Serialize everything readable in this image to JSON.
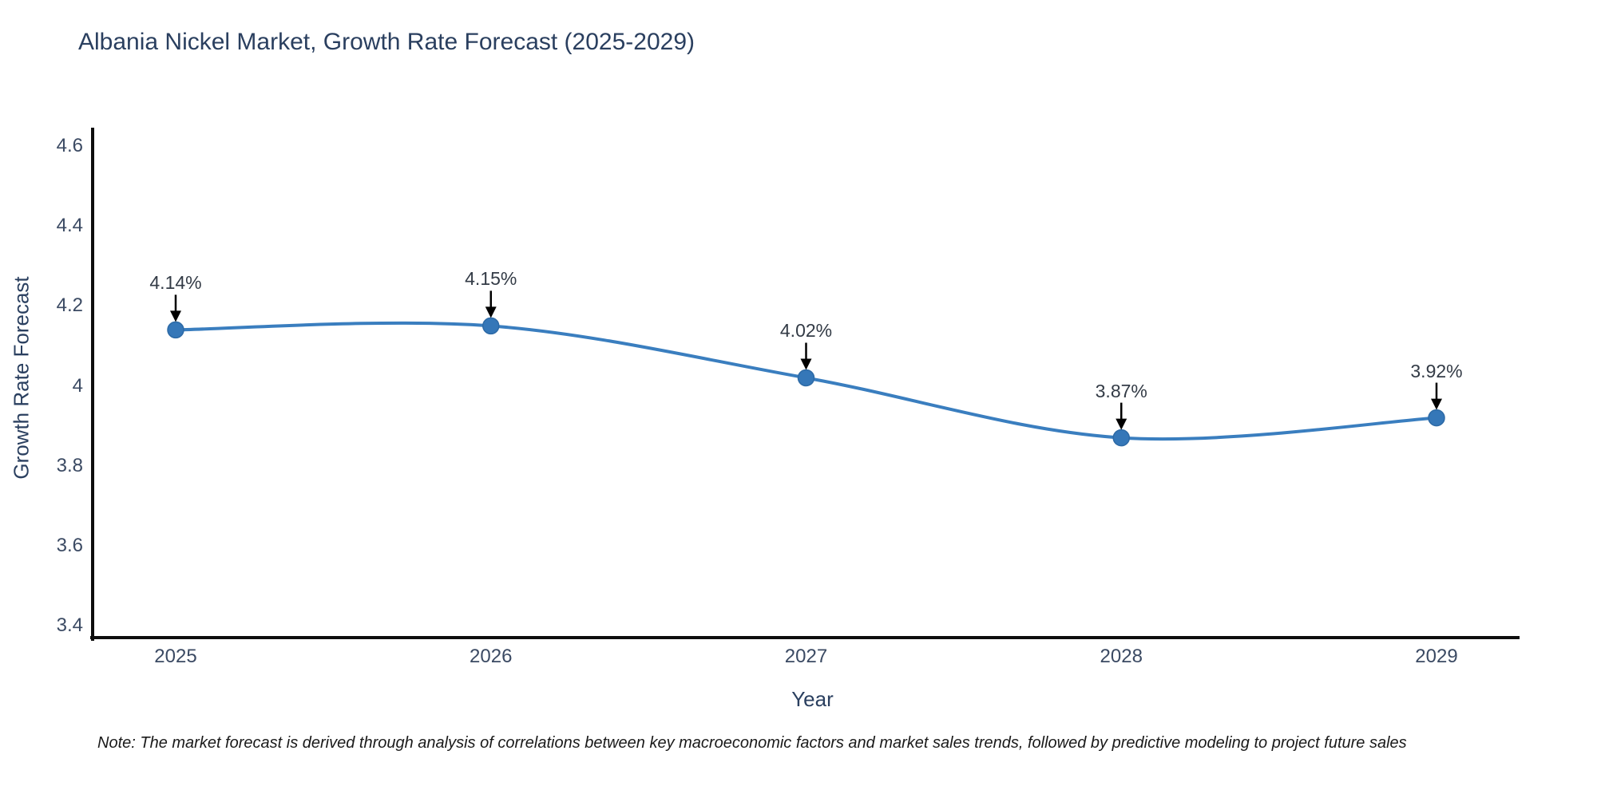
{
  "page": {
    "note": "Note: The market forecast is derived through analysis of correlations between key macroeconomic factors and market sales trends, followed by predictive modeling to project future sales"
  },
  "chart_data": {
    "type": "line",
    "title": "Albania Nickel Market, Growth Rate Forecast (2025-2029)",
    "xlabel": "Year",
    "ylabel": "Growth Rate Forecast",
    "categories": [
      "2025",
      "2026",
      "2027",
      "2028",
      "2029"
    ],
    "values": [
      4.14,
      4.15,
      4.02,
      3.87,
      3.92
    ],
    "point_labels": [
      "4.14%",
      "4.15%",
      "4.02%",
      "3.87%",
      "3.92%"
    ],
    "ytick_values": [
      3.4,
      3.6,
      3.8,
      4.0,
      4.2,
      4.4,
      4.6
    ],
    "ytick_labels": [
      "3.4",
      "3.6",
      "3.8",
      "4",
      "4.2",
      "4.4",
      "4.6"
    ],
    "ylim": [
      3.4,
      4.6
    ],
    "line_shape": "spline",
    "grid": false,
    "legend": "none",
    "annotations_arrow": "down-to-point",
    "colors": {
      "line": "#3a7ebf",
      "marker_fill": "#3577b8",
      "marker_edge": "#2d6aa6",
      "axis_line": "#0d0d0d",
      "arrow": "#000000",
      "title_text": "#2a3f5f",
      "tick_text": "#3b4a63",
      "annotation_text": "#333b46",
      "background": "#ffffff"
    }
  }
}
